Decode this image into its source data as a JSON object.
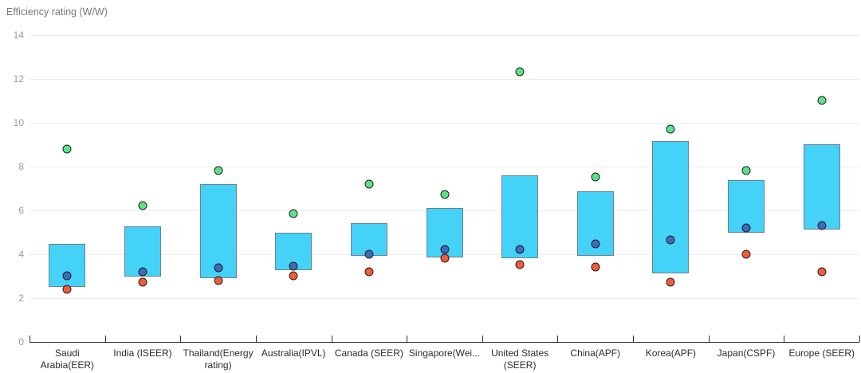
{
  "chart_data": {
    "type": "bar",
    "subtype": "floating-range-bars-with-scatter-points",
    "title": "Efficiency rating (W/W)",
    "xlabel": "",
    "ylabel": "Efficiency rating (W/W)",
    "ylim": [
      0,
      14
    ],
    "yticks": [
      0,
      2,
      4,
      6,
      8,
      10,
      12,
      14
    ],
    "grid": true,
    "legend": "none",
    "categories": [
      "Saudi Arabia(EER)",
      "India (ISEER)",
      "Thailand(Energy rating)",
      "Australia(IPVL)",
      "Canada (SEER)",
      "Singapore(Wei...",
      "United States (SEER)",
      "China(APF)",
      "Korea(APF)",
      "Japan(CSPF)",
      "Europe (SEER)"
    ],
    "series": [
      {
        "name": "range-bar",
        "type": "range-bar",
        "low": [
          2.5,
          2.95,
          2.9,
          3.25,
          3.9,
          3.85,
          3.8,
          3.9,
          3.1,
          4.95,
          5.1
        ],
        "high": [
          4.45,
          5.25,
          7.2,
          4.95,
          5.4,
          6.1,
          7.6,
          6.85,
          9.15,
          7.35,
          9.0
        ]
      },
      {
        "name": "green-points",
        "type": "scatter",
        "values": [
          8.8,
          6.2,
          7.8,
          5.85,
          7.2,
          6.7,
          12.3,
          7.5,
          9.7,
          7.8,
          11.0
        ]
      },
      {
        "name": "blue-points",
        "type": "scatter",
        "values": [
          3.0,
          3.2,
          3.35,
          3.45,
          4.0,
          4.2,
          4.2,
          4.45,
          4.65,
          5.2,
          5.3
        ]
      },
      {
        "name": "orange-points",
        "type": "scatter",
        "values": [
          2.4,
          2.7,
          2.8,
          3.0,
          3.2,
          3.8,
          3.5,
          3.4,
          2.7,
          4.0,
          3.2
        ]
      }
    ],
    "colors": {
      "bar_fill": "#45d2f8",
      "bar_border": "#6e8089",
      "green_point": "#5ee287",
      "blue_point": "#3e6cba",
      "orange_point": "#f15c38",
      "point_border": "#202020",
      "gridline": "#ececec",
      "axis_line": "#2f2f2f",
      "y_tick_label": "#9b9b9b",
      "x_cat_label": "#2b2b2b",
      "title": "#767676"
    }
  }
}
